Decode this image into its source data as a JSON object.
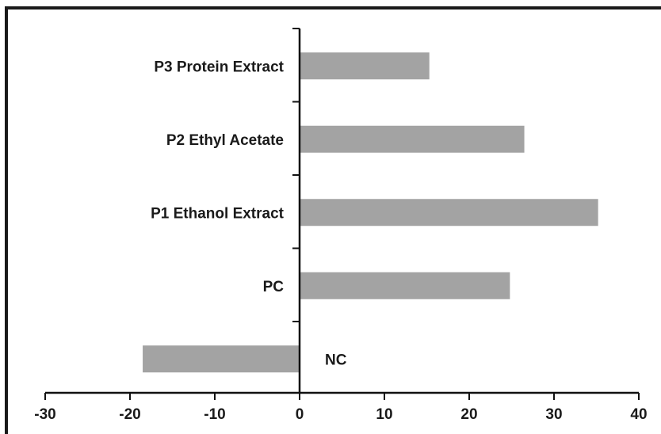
{
  "chart_data": {
    "type": "bar",
    "orientation": "horizontal",
    "categories": [
      "P3 Protein Extract",
      "P2 Ethyl Acetate",
      "P1 Ethanol Extract",
      "PC",
      "NC"
    ],
    "values": [
      15.3,
      26.5,
      35.2,
      24.8,
      -18.5
    ],
    "title": "",
    "xlabel": "",
    "ylabel": "",
    "xlim": [
      -30,
      40
    ],
    "xticks": [
      -30,
      -20,
      -10,
      0,
      10,
      20,
      30,
      40
    ],
    "grid": false,
    "legend": "none",
    "bar_color": "#a3a3a3"
  }
}
